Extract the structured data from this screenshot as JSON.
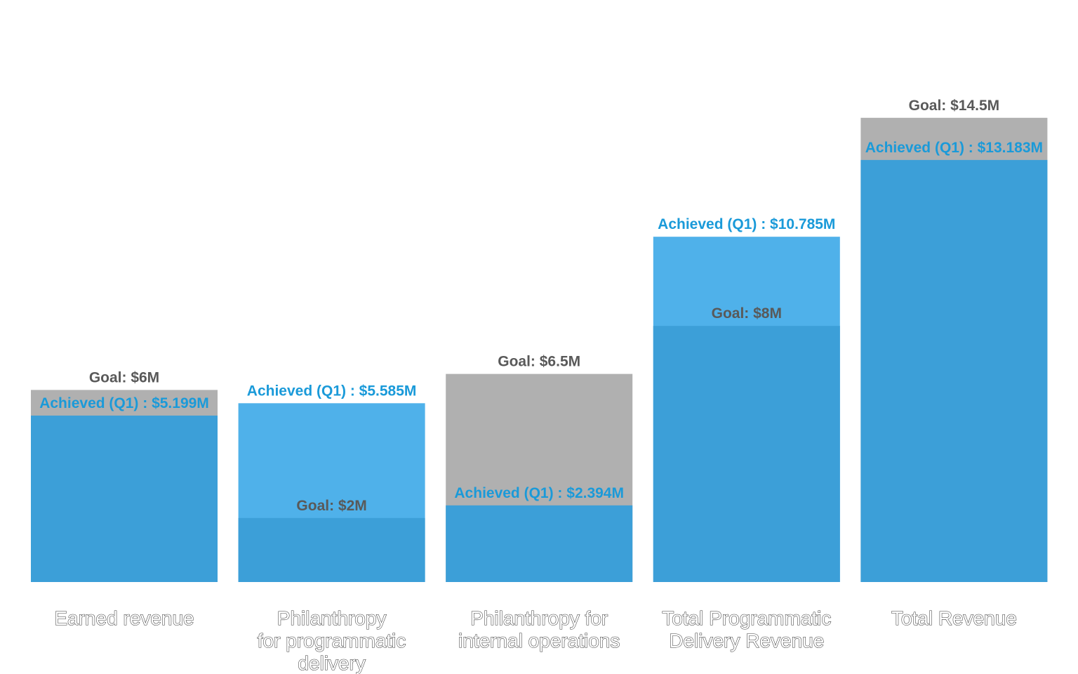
{
  "chart_data": {
    "type": "bar",
    "categories": [
      [
        "Earned revenue"
      ],
      [
        "Philanthropy",
        "for programmatic",
        "delivery"
      ],
      [
        "Philanthropy for",
        "internal operations"
      ],
      [
        "Total Programmatic",
        "Delivery Revenue"
      ],
      [
        "Total Revenue"
      ]
    ],
    "series": [
      {
        "name": "Goal",
        "values": [
          6,
          2,
          6.5,
          8,
          14.5
        ],
        "labels": [
          "Goal: $6M",
          "Goal: $2M",
          "Goal: $6.5M",
          "Goal: $8M",
          "Goal: $14.5M"
        ]
      },
      {
        "name": "Achieved (Q1)",
        "values": [
          5.199,
          5.585,
          2.394,
          10.785,
          13.183
        ],
        "labels": [
          "Achieved (Q1) : $5.199M",
          "Achieved (Q1) : $5.585M",
          "Achieved (Q1) : $2.394M",
          "Achieved (Q1) : $10.785M",
          "Achieved (Q1) : $13.183M"
        ]
      }
    ],
    "units": "$M",
    "ylim": [
      0,
      18
    ],
    "grid": false,
    "colors": {
      "goal": "#b0b0b0",
      "achieved": "#4fb1ea",
      "overlap": "#3c9fd8",
      "goal_text": "#595959",
      "achieved_text": "#1a9ad9"
    }
  }
}
